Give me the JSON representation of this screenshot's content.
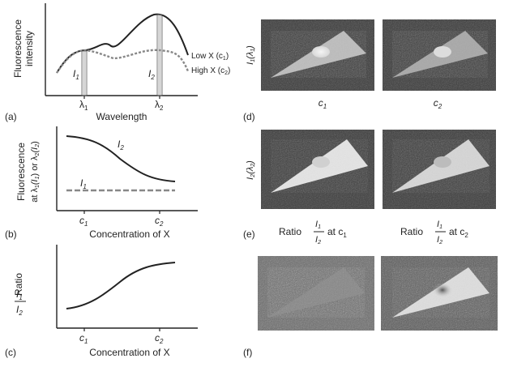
{
  "panel_a": {
    "label": "(a)",
    "ylabel_1": "Fluorescence",
    "ylabel_2": "intensity",
    "xlabel": "Wavelength",
    "tick_1": "λ",
    "tick_1_sub": "1",
    "tick_2": "λ",
    "tick_2_sub": "2",
    "marker_1": "I",
    "marker_1_sub": "1",
    "marker_2": "I",
    "marker_2_sub": "2",
    "legend_low": "Low X (c",
    "legend_low_sub": "1",
    "legend_high": "High X (c",
    "legend_high_sub": "2",
    "close_paren": ")"
  },
  "panel_b": {
    "label": "(b)",
    "ylabel_1": "Fluorescence",
    "ylabel_2": "at λ",
    "ylabel_2b": "(I",
    "ylabel_2c": ") or λ",
    "ylabel_2d": "(I",
    "ylabel_2e": ")",
    "sub1": "1",
    "sub2": "2",
    "curve_i2": "I",
    "curve_i2_sub": "2",
    "curve_i1": "I",
    "curve_i1_sub": "1",
    "xlabel": "Concentration of X",
    "tick_1": "c",
    "tick_1_sub": "1",
    "tick_2": "c",
    "tick_2_sub": "2"
  },
  "panel_c": {
    "label": "(c)",
    "ylabel_num": "I",
    "ylabel_num_sub": "1",
    "ylabel_den": "I",
    "ylabel_den_sub": "2",
    "ylabel_word": "Ratio",
    "xlabel": "Concentration of X",
    "tick_1": "c",
    "tick_1_sub": "1",
    "tick_2": "c",
    "tick_2_sub": "2"
  },
  "panel_d": {
    "label": "(d)",
    "ylabel": "I",
    "ylabel_sub": "1",
    "ylabel_paren": "(λ",
    "ylabel_paren_sub": "1",
    "ylabel_close": ")",
    "col_1": "c",
    "col_1_sub": "1",
    "col_2": "c",
    "col_2_sub": "2"
  },
  "panel_e": {
    "label": "(e)",
    "ylabel": "I",
    "ylabel_sub": "2",
    "ylabel_paren": "(λ",
    "ylabel_paren_sub": "2",
    "ylabel_close": ")",
    "ratio_word": "Ratio",
    "num": "I",
    "num_sub": "1",
    "den": "I",
    "den_sub": "2",
    "at_1": "at c",
    "at_1_sub": "1",
    "at_2": "at c",
    "at_2_sub": "2"
  },
  "panel_f": {
    "label": "(f)"
  },
  "colors": {
    "line": "#222222",
    "dashed": "#888888",
    "image_bg": "#3a3a3a"
  }
}
